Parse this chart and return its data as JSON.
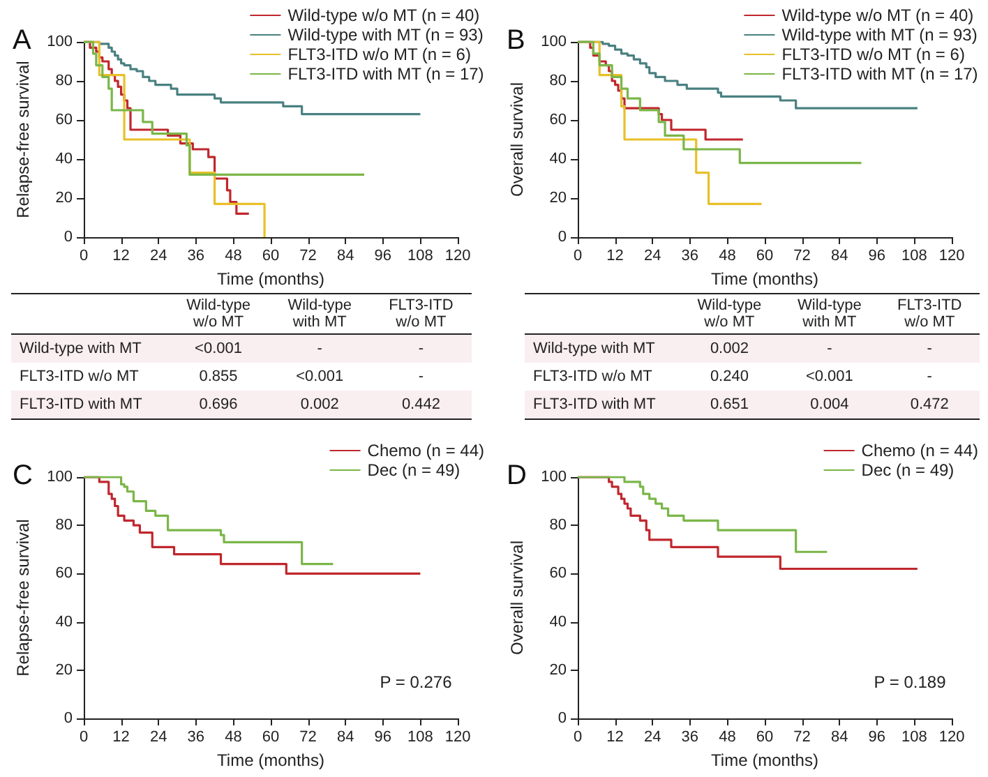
{
  "chart_data": [
    {
      "type": "step",
      "title": "A",
      "xlabel": "Time (months)",
      "ylabel": "Relapse-free survival",
      "xlim": [
        0,
        120
      ],
      "ylim": [
        0,
        100
      ],
      "xticks": [
        0,
        12,
        24,
        36,
        48,
        60,
        72,
        84,
        96,
        108,
        120
      ],
      "yticks": [
        0,
        20,
        40,
        60,
        80,
        100
      ],
      "grid": false,
      "legend": "top right",
      "series": [
        {
          "name": "Wild-type w/o MT (n = 40)",
          "color": "#c0272d",
          "x": [
            0,
            2,
            4,
            5,
            6,
            8,
            9,
            10,
            11,
            12,
            13,
            14,
            15,
            27,
            31,
            35,
            40,
            42,
            46,
            47,
            49,
            53
          ],
          "values": [
            100,
            97,
            95,
            92,
            90,
            86,
            83,
            80,
            77,
            73,
            70,
            66,
            55,
            52,
            48,
            45,
            41,
            30,
            24,
            18,
            12,
            12
          ]
        },
        {
          "name": "Wild-type with MT (n = 93)",
          "color": "#4a8080",
          "x": [
            0,
            5,
            8,
            9,
            10,
            11,
            12,
            13,
            15,
            17,
            19,
            21,
            23,
            28,
            30,
            42,
            44,
            64,
            70,
            108
          ],
          "values": [
            100,
            99,
            97,
            95,
            93,
            91,
            89,
            88,
            86,
            85,
            82,
            80,
            78,
            76,
            73,
            71,
            69,
            67,
            63,
            63
          ]
        },
        {
          "name": "FLT3-ITD w/o MT (n = 6)",
          "color": "#e8c028",
          "x": [
            0,
            5,
            13,
            34,
            42,
            58
          ],
          "values": [
            100,
            83,
            50,
            33,
            17,
            0
          ]
        },
        {
          "name": "FLT3-ITD with MT (n = 17)",
          "color": "#7ab648",
          "x": [
            0,
            3,
            4,
            6,
            8,
            9,
            19,
            22,
            33,
            34,
            90
          ],
          "values": [
            100,
            94,
            88,
            82,
            76,
            65,
            59,
            53,
            47,
            32,
            32
          ]
        }
      ]
    },
    {
      "type": "step",
      "title": "B",
      "xlabel": "Time (months)",
      "ylabel": "Overall survival",
      "xlim": [
        0,
        120
      ],
      "ylim": [
        0,
        100
      ],
      "xticks": [
        0,
        12,
        24,
        36,
        48,
        60,
        72,
        84,
        96,
        108,
        120
      ],
      "yticks": [
        0,
        20,
        40,
        60,
        80,
        100
      ],
      "grid": false,
      "legend": "top right",
      "series": [
        {
          "name": "Wild-type w/o MT (n = 40)",
          "color": "#c0272d",
          "x": [
            0,
            4,
            5,
            7,
            9,
            10,
            11,
            12,
            13,
            14,
            15,
            26,
            27,
            30,
            41,
            53
          ],
          "values": [
            100,
            97,
            93,
            90,
            88,
            85,
            80,
            78,
            75,
            71,
            66,
            63,
            60,
            55,
            50,
            50
          ]
        },
        {
          "name": "Wild-type with MT (n = 93)",
          "color": "#4a8080",
          "x": [
            0,
            8,
            10,
            12,
            14,
            16,
            18,
            20,
            22,
            23,
            25,
            28,
            32,
            35,
            45,
            46,
            65,
            70,
            109
          ],
          "values": [
            100,
            99,
            98,
            96,
            94,
            93,
            91,
            89,
            87,
            84,
            82,
            80,
            78,
            76,
            74,
            72,
            70,
            66,
            66
          ]
        },
        {
          "name": "FLT3-ITD w/o MT (n = 6)",
          "color": "#e8c028",
          "x": [
            0,
            7,
            14,
            15,
            38,
            42,
            59
          ],
          "values": [
            100,
            83,
            67,
            50,
            33,
            17,
            17
          ]
        },
        {
          "name": "FLT3-ITD with MT (n = 17)",
          "color": "#7ab648",
          "x": [
            0,
            5,
            7,
            11,
            14,
            16,
            20,
            26,
            28,
            34,
            52,
            91
          ],
          "values": [
            100,
            94,
            88,
            82,
            76,
            71,
            65,
            59,
            52,
            45,
            38,
            38
          ]
        }
      ]
    },
    {
      "type": "other",
      "categories": [
        "Wild-type w/o MT",
        "Wild-type with MT",
        "FLT3-ITD w/o MT"
      ],
      "y_categories": [
        "Wild-type with MT",
        "FLT3-ITD w/o MT",
        "FLT3-ITD with MT"
      ],
      "cell_labels": [
        [
          "<0.001",
          "-",
          "-"
        ],
        [
          "0.855",
          "<0.001",
          "-"
        ],
        [
          "0.696",
          "0.002",
          "0.442"
        ]
      ]
    },
    {
      "type": "other",
      "categories": [
        "Wild-type w/o MT",
        "Wild-type with MT",
        "FLT3-ITD w/o MT"
      ],
      "y_categories": [
        "Wild-type with MT",
        "FLT3-ITD w/o MT",
        "FLT3-ITD with MT"
      ],
      "cell_labels": [
        [
          "0.002",
          "-",
          "-"
        ],
        [
          "0.240",
          "<0.001",
          "-"
        ],
        [
          "0.651",
          "0.004",
          "0.472"
        ]
      ]
    },
    {
      "type": "step",
      "title": "C",
      "xlabel": "Time (months)",
      "ylabel": "Relapse-free survival",
      "xlim": [
        0,
        120
      ],
      "ylim": [
        0,
        100
      ],
      "xticks": [
        0,
        12,
        24,
        36,
        48,
        60,
        72,
        84,
        96,
        108,
        120
      ],
      "yticks": [
        0,
        20,
        40,
        60,
        80,
        100
      ],
      "grid": false,
      "legend": "top right",
      "annotations": [
        "P = 0.276"
      ],
      "series": [
        {
          "name": "Chemo (n = 44)",
          "color": "#c0272d",
          "x": [
            0,
            5,
            8,
            9,
            10,
            11,
            13,
            16,
            18,
            22,
            29,
            44,
            65,
            108
          ],
          "values": [
            100,
            98,
            93,
            91,
            88,
            84,
            82,
            80,
            77,
            71,
            68,
            64,
            60,
            60
          ]
        },
        {
          "name": "Dec (n = 49)",
          "color": "#7ab648",
          "x": [
            0,
            12,
            13,
            14,
            16,
            20,
            23,
            27,
            44,
            45,
            70,
            80
          ],
          "values": [
            100,
            97,
            96,
            94,
            90,
            86,
            84,
            78,
            76,
            73,
            64,
            64
          ]
        }
      ]
    },
    {
      "type": "step",
      "title": "D",
      "xlabel": "Time (months)",
      "ylabel": "Overall survival",
      "xlim": [
        0,
        120
      ],
      "ylim": [
        0,
        100
      ],
      "xticks": [
        0,
        12,
        24,
        36,
        48,
        60,
        72,
        84,
        96,
        108,
        120
      ],
      "yticks": [
        0,
        20,
        40,
        60,
        80,
        100
      ],
      "grid": false,
      "legend": "top right",
      "annotations": [
        "P = 0.189"
      ],
      "series": [
        {
          "name": "Chemo (n = 44)",
          "color": "#c0272d",
          "x": [
            0,
            10,
            11,
            13,
            14,
            15,
            16,
            17,
            20,
            22,
            23,
            30,
            45,
            65,
            109
          ],
          "values": [
            100,
            98,
            96,
            93,
            91,
            89,
            87,
            84,
            82,
            78,
            74,
            71,
            67,
            62,
            62
          ]
        },
        {
          "name": "Dec (n = 49)",
          "color": "#7ab648",
          "x": [
            0,
            15,
            20,
            21,
            23,
            25,
            27,
            29,
            34,
            45,
            70,
            80
          ],
          "values": [
            100,
            98,
            96,
            93,
            91,
            89,
            87,
            84,
            82,
            78,
            69,
            69
          ]
        }
      ]
    }
  ]
}
